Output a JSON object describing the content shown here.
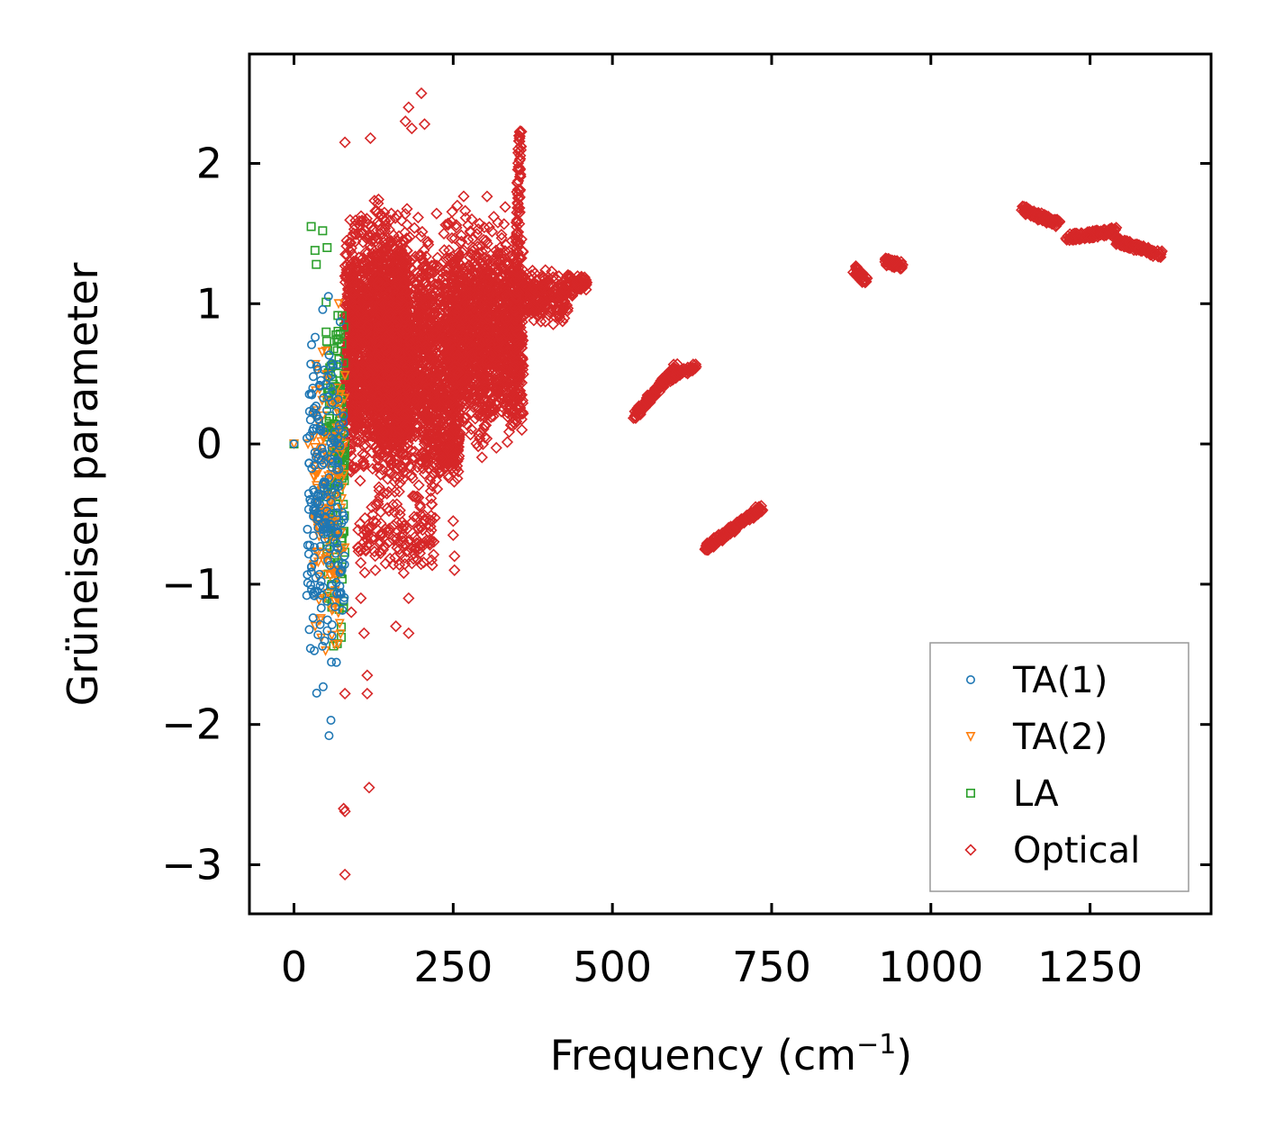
{
  "chart_data": {
    "type": "scatter",
    "title": "",
    "xlabel": "Frequency (cm",
    "xlabel_sup": "−1",
    "xlabel_close": ")",
    "ylabel": "Grüneisen parameter",
    "xlim": [
      -70,
      1440
    ],
    "ylim": [
      -3.35,
      2.78
    ],
    "xticks": [
      0,
      250,
      500,
      750,
      1000,
      1250
    ],
    "xtick_labels": [
      "0",
      "250",
      "500",
      "750",
      "1000",
      "1250"
    ],
    "yticks": [
      -3,
      -2,
      -1,
      0,
      1,
      2
    ],
    "ytick_labels": [
      "−3",
      "−2",
      "−1",
      "0",
      "1",
      "2"
    ],
    "grid": false,
    "legend_position": "lower-right",
    "colors": {
      "TA(1)": "#1f77b4",
      "TA(2)": "#ff7f0e",
      "LA": "#2ca02c",
      "Optical": "#d62728"
    },
    "series": [
      {
        "name": "TA(1)",
        "marker": "circle",
        "clusters": [
          {
            "x": [
              20,
              80
            ],
            "y": [
              -2.1,
              1.35
            ],
            "n": 220
          }
        ],
        "points": [
          [
            0,
            0
          ],
          [
            55,
            -2.08
          ],
          [
            58,
            -1.97
          ],
          [
            20,
            -1.08
          ],
          [
            30,
            -1.24
          ],
          [
            40,
            -0.93
          ],
          [
            28,
            0.35
          ]
        ]
      },
      {
        "name": "TA(2)",
        "marker": "triangle-down",
        "clusters": [
          {
            "x": [
              30,
              80
            ],
            "y": [
              -1.85,
              1.1
            ],
            "n": 150
          }
        ],
        "points": [
          [
            0,
            0
          ],
          [
            22,
            0
          ],
          [
            35,
            -0.2
          ],
          [
            45,
            0.2
          ],
          [
            70,
            1.0
          ]
        ]
      },
      {
        "name": "LA",
        "marker": "square",
        "clusters": [
          {
            "x": [
              50,
              80
            ],
            "y": [
              -1.8,
              1.55
            ],
            "n": 150
          }
        ],
        "points": [
          [
            0,
            0
          ],
          [
            27,
            1.55
          ],
          [
            35,
            1.28
          ],
          [
            45,
            1.52
          ],
          [
            52,
            1.4
          ],
          [
            33,
            1.38
          ]
        ]
      },
      {
        "name": "Optical",
        "marker": "diamond",
        "clusters": [
          {
            "x": [
              80,
              180
            ],
            "y": [
              -0.5,
              1.9
            ],
            "n": 1800
          },
          {
            "x": [
              130,
              260
            ],
            "y": [
              -0.6,
              1.8
            ],
            "n": 1700
          },
          {
            "x": [
              250,
              360
            ],
            "y": [
              -0.2,
              1.8
            ],
            "n": 1400
          },
          {
            "x": [
              360,
              430
            ],
            "y": [
              0.8,
              1.3
            ],
            "n": 220
          },
          {
            "x": [
              425,
              460
            ],
            "y": [
              1.05,
              1.25
            ],
            "n": 60
          },
          {
            "x": [
              100,
              220
            ],
            "y": [
              -1.0,
              -0.3
            ],
            "n": 140
          },
          {
            "x": [
              200,
              260
            ],
            "y": [
              -0.3,
              0.2
            ],
            "n": 90
          }
        ],
        "lines": [
          {
            "x": [
              345,
              355
            ],
            "y": [
              0.2,
              2.25
            ],
            "n": 140
          },
          {
            "x": [
              535,
              600
            ],
            "y": [
              0.2,
              0.55
            ],
            "n": 120
          },
          {
            "x": [
              580,
              630
            ],
            "y": [
              0.45,
              0.55
            ],
            "n": 60
          },
          {
            "x": [
              645,
              735
            ],
            "y": [
              -0.75,
              -0.45
            ],
            "n": 150
          },
          {
            "x": [
              880,
              900
            ],
            "y": [
              1.25,
              1.15
            ],
            "n": 40
          },
          {
            "x": [
              930,
              955
            ],
            "y": [
              1.3,
              1.27
            ],
            "n": 50
          },
          {
            "x": [
              1145,
              1200
            ],
            "y": [
              1.67,
              1.57
            ],
            "n": 110
          },
          {
            "x": [
              1215,
              1290
            ],
            "y": [
              1.47,
              1.52
            ],
            "n": 120
          },
          {
            "x": [
              1290,
              1360
            ],
            "y": [
              1.45,
              1.35
            ],
            "n": 120
          }
        ],
        "points": [
          [
            200,
            2.5
          ],
          [
            180,
            2.4
          ],
          [
            175,
            2.3
          ],
          [
            185,
            2.25
          ],
          [
            120,
            2.18
          ],
          [
            80,
            2.15
          ],
          [
            80,
            -3.07
          ],
          [
            80,
            -2.62
          ],
          [
            78,
            -2.6
          ],
          [
            118,
            -2.45
          ],
          [
            115,
            -1.78
          ],
          [
            115,
            -1.65
          ],
          [
            80,
            -1.78
          ],
          [
            160,
            -1.3
          ],
          [
            180,
            -1.35
          ],
          [
            180,
            -1.1
          ],
          [
            250,
            -0.65
          ],
          [
            250,
            -0.55
          ],
          [
            252,
            -0.9
          ],
          [
            252,
            -0.8
          ],
          [
            110,
            -1.35
          ],
          [
            90,
            -1.2
          ],
          [
            105,
            -1.1
          ],
          [
            205,
            2.28
          ]
        ]
      }
    ]
  }
}
